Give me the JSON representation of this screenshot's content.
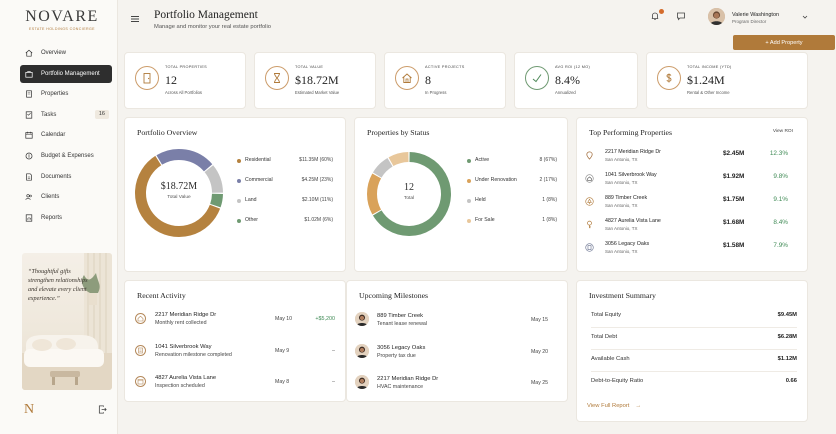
{
  "brand": {
    "name": "NOVARE",
    "tagline": "ESTATE HOLDINGS CONCIERGE"
  },
  "sidebar": {
    "items": [
      {
        "label": "Overview",
        "icon": "home-icon"
      },
      {
        "label": "Portfolio Management",
        "icon": "briefcase-icon",
        "active": true
      },
      {
        "label": "Properties",
        "icon": "building-icon"
      },
      {
        "label": "Tasks",
        "icon": "checklist-icon",
        "badge": "16"
      },
      {
        "label": "Calendar",
        "icon": "calendar-icon"
      },
      {
        "label": "Budget & Expenses",
        "icon": "coin-icon"
      },
      {
        "label": "Documents",
        "icon": "document-icon"
      },
      {
        "label": "Clients",
        "icon": "users-icon"
      },
      {
        "label": "Reports",
        "icon": "report-icon"
      }
    ],
    "quote": "“Thoughtful gifts strengthen relationships and elevate every client experience.”",
    "footer_logo": "N"
  },
  "header": {
    "title": "Portfolio Management",
    "subtitle": "Manage and monitor your real estate portfolio",
    "user_name": "Valerie Washington",
    "user_role": "Program Director",
    "add_button": "+ Add Property"
  },
  "stats": [
    {
      "label": "TOTAL PROPERTIES",
      "value": "12",
      "note": "Across All Portfolios",
      "icon": "door-icon"
    },
    {
      "label": "TOTAL VALUE",
      "value": "$18.72M",
      "note": "Estimated Market Value",
      "icon": "hourglass-icon"
    },
    {
      "label": "ACTIVE PROJECTS",
      "value": "8",
      "note": "In Progress",
      "icon": "house-icon"
    },
    {
      "label": "AVG ROI (12 MO)",
      "value": "8.4%",
      "note": "Annualized",
      "icon": "trend-check-icon"
    },
    {
      "label": "TOTAL INCOME (YTD)",
      "value": "$1.24M",
      "note": "Rental & Other Income",
      "icon": "dollar-icon"
    }
  ],
  "portfolio_overview": {
    "title": "Portfolio Overview",
    "center_value": "$18.72M",
    "center_label": "Total Value"
  },
  "properties_status": {
    "title": "Properties by Status",
    "center_value": "12",
    "center_label": "Total"
  },
  "chart_data": [
    {
      "type": "pie",
      "title": "Portfolio Overview",
      "categories": [
        "Residential",
        "Commercial",
        "Land",
        "Other"
      ],
      "values": [
        11.35,
        4.25,
        2.1,
        1.02
      ],
      "labels": [
        "$11.35M (60%)",
        "$4.25M (23%)",
        "$2.10M (11%)",
        "$1.02M (6%)"
      ],
      "colors": [
        "#b5823f",
        "#7a7fa8",
        "#c4c4c4",
        "#6f9a72"
      ]
    },
    {
      "type": "pie",
      "title": "Properties by Status",
      "categories": [
        "Active",
        "Under Renovation",
        "Held",
        "For Sale"
      ],
      "values": [
        8,
        2,
        1,
        1
      ],
      "labels": [
        "8 (67%)",
        "2 (17%)",
        "1 (8%)",
        "1 (8%)"
      ],
      "colors": [
        "#6f9a72",
        "#d9a25a",
        "#c4c4c4",
        "#e8c79b"
      ]
    }
  ],
  "top_performing": {
    "title": "Top Performing Properties",
    "col": "View ROI",
    "rows": [
      {
        "name": "2217 Meridian Ridge Dr",
        "loc": "San Antonio, TX",
        "value": "$2.45M",
        "roi": "12.3%",
        "icon": "pin-icon"
      },
      {
        "name": "1041 Silverbrook Way",
        "loc": "San Antonio, TX",
        "value": "$1.92M",
        "roi": "9.8%",
        "icon": "home-badge-icon"
      },
      {
        "name": "889 Timber Creek",
        "loc": "San Antonio, TX",
        "value": "$1.75M",
        "roi": "9.1%",
        "icon": "tree-icon"
      },
      {
        "name": "4827 Aurelia Vista Lane",
        "loc": "San Antonio, TX",
        "value": "$1.68M",
        "roi": "8.4%",
        "icon": "key-icon"
      },
      {
        "name": "3056 Legacy Oaks",
        "loc": "San Antonio, TX",
        "value": "$1.58M",
        "roi": "7.9%",
        "icon": "building-badge-icon"
      }
    ]
  },
  "recent_activity": {
    "title": "Recent Activity",
    "rows": [
      {
        "name": "2217 Meridian Ridge Dr",
        "sub": "Monthly rent collected",
        "date": "May 10",
        "amount": "+$5,200"
      },
      {
        "name": "1041 Silverbrook Way",
        "sub": "Renovation milestone completed",
        "date": "May 9",
        "amount": "–"
      },
      {
        "name": "4827 Aurelia Vista Lane",
        "sub": "Inspection scheduled",
        "date": "May 8",
        "amount": "–"
      }
    ]
  },
  "milestones": {
    "title": "Upcoming Milestones",
    "rows": [
      {
        "name": "889 Timber Creek",
        "sub": "Tenant lease renewal",
        "date": "May 15"
      },
      {
        "name": "3056 Legacy Oaks",
        "sub": "Property tax due",
        "date": "May 20"
      },
      {
        "name": "2217 Meridian Ridge Dr",
        "sub": "HVAC maintenance",
        "date": "May 25"
      }
    ]
  },
  "investment": {
    "title": "Investment Summary",
    "rows": [
      {
        "label": "Total Equity",
        "value": "$9.45M"
      },
      {
        "label": "Total Debt",
        "value": "$6.28M"
      },
      {
        "label": "Available Cash",
        "value": "$1.12M"
      },
      {
        "label": "Debt-to-Equity Ratio",
        "value": "0.66"
      }
    ],
    "link": "View Full Report"
  }
}
